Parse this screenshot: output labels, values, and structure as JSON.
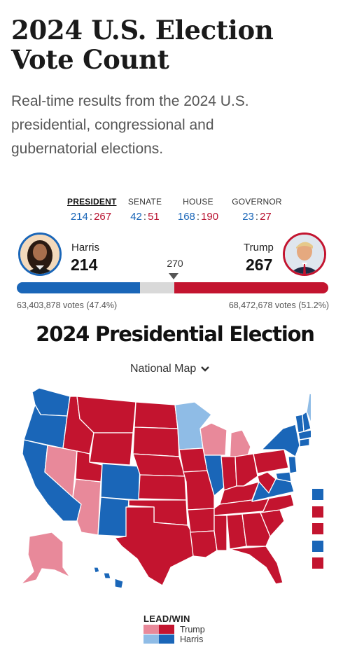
{
  "header": {
    "title_line1": "2024 U.S. Election",
    "title_line2": "Vote Count",
    "subtitle_line1": "Real-time results from the 2024 U.S.",
    "subtitle_line2": "presidential, congressional and",
    "subtitle_line3": "gubernatorial elections."
  },
  "tabs": [
    {
      "label": "PRESIDENT",
      "dem": "214",
      "sep": ":",
      "rep": "267",
      "active": true
    },
    {
      "label": "SENATE",
      "dem": "42",
      "sep": ":",
      "rep": "51",
      "active": false
    },
    {
      "label": "HOUSE",
      "dem": "168",
      "sep": ":",
      "rep": "190",
      "active": false
    },
    {
      "label": "GOVERNOR",
      "dem": "23",
      "sep": ":",
      "rep": "27",
      "active": false
    }
  ],
  "race": {
    "threshold": "270",
    "harris": {
      "name": "Harris",
      "electoral": "214",
      "popular": "63,403,878 votes (47.4%)"
    },
    "trump": {
      "name": "Trump",
      "electoral": "267",
      "popular": "68,472,678 votes (51.2%)"
    },
    "bar_dem_fraction": 0.396,
    "bar_rep_fraction": 0.495
  },
  "map": {
    "title": "2024 Presidential Election",
    "selector_label": "National Map",
    "small_state_leads": [
      "dem",
      "rep",
      "rep",
      "dem",
      "rep"
    ]
  },
  "legend": {
    "title": "LEAD/WIN",
    "trump_label": "Trump",
    "harris_label": "Harris"
  },
  "colors": {
    "dem_win": "#1a66b8",
    "dem_lead": "#8fbce6",
    "rep_win": "#c3142f",
    "rep_lead": "#e8899a",
    "bar_gray": "#d9d9d9"
  }
}
